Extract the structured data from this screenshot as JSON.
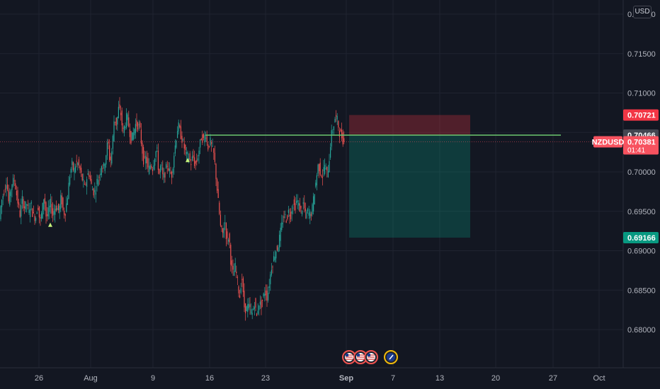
{
  "currency": "USD",
  "chart_data": {
    "type": "candlestick",
    "symbol": "NZDUSD",
    "ylim": [
      0.6775,
      0.7235
    ],
    "y_ticks": [
      "0.72000",
      "0.71500",
      "0.71000",
      "0.70500",
      "0.70000",
      "0.69500",
      "0.69000",
      "0.68500",
      "0.68000"
    ],
    "y_tick_values": [
      0.72,
      0.715,
      0.71,
      0.705,
      0.7,
      0.695,
      0.69,
      0.685,
      0.68
    ],
    "x_ticks": [
      {
        "label": "26",
        "bold": false
      },
      {
        "label": "Aug",
        "bold": false
      },
      {
        "label": "9",
        "bold": false
      },
      {
        "label": "16",
        "bold": false
      },
      {
        "label": "23",
        "bold": false
      },
      {
        "label": "Sep",
        "bold": true
      },
      {
        "label": "7",
        "bold": false
      },
      {
        "label": "13",
        "bold": false
      },
      {
        "label": "20",
        "bold": false
      },
      {
        "label": "27",
        "bold": false
      },
      {
        "label": "Oct",
        "bold": false
      }
    ],
    "price_path": [
      [
        0,
        0.693
      ],
      [
        3,
        0.696
      ],
      [
        7,
        0.6975
      ],
      [
        11,
        0.699
      ],
      [
        14,
        0.696
      ],
      [
        18,
        0.6985
      ],
      [
        22,
        0.699
      ],
      [
        26,
        0.6965
      ],
      [
        30,
        0.6945
      ],
      [
        33,
        0.6965
      ],
      [
        36,
        0.6955
      ],
      [
        40,
        0.696
      ],
      [
        42,
        0.6945
      ],
      [
        45,
        0.6962
      ],
      [
        48,
        0.6945
      ],
      [
        52,
        0.6942
      ],
      [
        55,
        0.696
      ],
      [
        58,
        0.6935
      ],
      [
        61,
        0.695
      ],
      [
        64,
        0.6972
      ],
      [
        67,
        0.694
      ],
      [
        70,
        0.695
      ],
      [
        73,
        0.696
      ],
      [
        76,
        0.6945
      ],
      [
        79,
        0.6955
      ],
      [
        82,
        0.6955
      ],
      [
        85,
        0.695
      ],
      [
        88,
        0.697
      ],
      [
        91,
        0.6948
      ],
      [
        94,
        0.695
      ],
      [
        97,
        0.697
      ],
      [
        100,
        0.6995
      ],
      [
        103,
        0.701
      ],
      [
        106,
        0.7
      ],
      [
        109,
        0.7012
      ],
      [
        112,
        0.701
      ],
      [
        115,
        0.7
      ],
      [
        118,
        0.699
      ],
      [
        121,
        0.698
      ],
      [
        124,
        0.6992
      ],
      [
        127,
        0.7
      ],
      [
        130,
        0.6985
      ],
      [
        133,
        0.6975
      ],
      [
        136,
        0.6975
      ],
      [
        139,
        0.699
      ],
      [
        142,
        0.6995
      ],
      [
        145,
        0.701
      ],
      [
        148,
        0.7005
      ],
      [
        151,
        0.702
      ],
      [
        154,
        0.704
      ],
      [
        157,
        0.701
      ],
      [
        160,
        0.703
      ],
      [
        163,
        0.707
      ],
      [
        166,
        0.706
      ],
      [
        169,
        0.708
      ],
      [
        172,
        0.7075
      ],
      [
        175,
        0.705
      ],
      [
        178,
        0.706
      ],
      [
        181,
        0.7072
      ],
      [
        184,
        0.7055
      ],
      [
        187,
        0.704
      ],
      [
        190,
        0.705
      ],
      [
        193,
        0.706
      ],
      [
        196,
        0.706
      ],
      [
        199,
        0.7055
      ],
      [
        202,
        0.703
      ],
      [
        205,
        0.701
      ],
      [
        208,
        0.702
      ],
      [
        211,
        0.7
      ],
      [
        214,
        0.701
      ],
      [
        217,
        0.7005
      ],
      [
        220,
        0.702
      ],
      [
        223,
        0.703
      ],
      [
        226,
        0.6995
      ],
      [
        229,
        0.701
      ],
      [
        232,
        0.699
      ],
      [
        235,
        0.7
      ],
      [
        238,
        0.701
      ],
      [
        241,
        0.7
      ],
      [
        244,
        0.6995
      ],
      [
        247,
        0.702
      ],
      [
        250,
        0.704
      ],
      [
        253,
        0.706
      ],
      [
        256,
        0.705
      ],
      [
        259,
        0.704
      ],
      [
        262,
        0.703
      ],
      [
        265,
        0.702
      ],
      [
        268,
        0.702
      ],
      [
        271,
        0.701
      ],
      [
        274,
        0.702
      ],
      [
        277,
        0.7008
      ],
      [
        280,
        0.7015
      ],
      [
        283,
        0.703
      ],
      [
        286,
        0.7045
      ],
      [
        289,
        0.704
      ],
      [
        292,
        0.705
      ],
      [
        295,
        0.703
      ],
      [
        298,
        0.704
      ],
      [
        301,
        0.703
      ],
      [
        304,
        0.702
      ],
      [
        307,
        0.699
      ],
      [
        310,
        0.696
      ],
      [
        313,
        0.693
      ],
      [
        316,
        0.692
      ],
      [
        319,
        0.694
      ],
      [
        322,
        0.691
      ],
      [
        325,
        0.692
      ],
      [
        328,
        0.688
      ],
      [
        331,
        0.687
      ],
      [
        334,
        0.688
      ],
      [
        337,
        0.686
      ],
      [
        340,
        0.684
      ],
      [
        343,
        0.687
      ],
      [
        346,
        0.683
      ],
      [
        349,
        0.6825
      ],
      [
        352,
        0.683
      ],
      [
        355,
        0.6825
      ],
      [
        358,
        0.682
      ],
      [
        361,
        0.6835
      ],
      [
        364,
        0.6815
      ],
      [
        367,
        0.6835
      ],
      [
        370,
        0.683
      ],
      [
        373,
        0.684
      ],
      [
        376,
        0.685
      ],
      [
        379,
        0.684
      ],
      [
        382,
        0.686
      ],
      [
        385,
        0.688
      ],
      [
        388,
        0.689
      ],
      [
        391,
        0.69
      ],
      [
        394,
        0.6905
      ],
      [
        397,
        0.692
      ],
      [
        400,
        0.6935
      ],
      [
        403,
        0.6945
      ],
      [
        406,
        0.694
      ],
      [
        409,
        0.695
      ],
      [
        412,
        0.6945
      ],
      [
        415,
        0.696
      ],
      [
        418,
        0.6955
      ],
      [
        421,
        0.6965
      ],
      [
        424,
        0.6955
      ],
      [
        427,
        0.695
      ],
      [
        430,
        0.696
      ],
      [
        433,
        0.6945
      ],
      [
        436,
        0.695
      ],
      [
        439,
        0.6945
      ],
      [
        442,
        0.695
      ],
      [
        445,
        0.697
      ],
      [
        448,
        0.699
      ],
      [
        451,
        0.701
      ],
      [
        454,
        0.7
      ],
      [
        457,
        0.6995
      ],
      [
        460,
        0.701
      ],
      [
        463,
        0.6995
      ],
      [
        466,
        0.701
      ],
      [
        469,
        0.7045
      ],
      [
        472,
        0.7055
      ],
      [
        475,
        0.707
      ],
      [
        478,
        0.7065
      ],
      [
        481,
        0.705
      ],
      [
        484,
        0.7045
      ],
      [
        487,
        0.7038
      ]
    ],
    "horizontal_line": {
      "price": 0.70466,
      "color": "#66bb6a",
      "start_x": 290,
      "end_x": 792
    },
    "position": {
      "entry": 0.70466,
      "stop": 0.70721,
      "target": 0.69166,
      "start_x": 493,
      "end_x": 664
    },
    "signal_markers": [
      {
        "x": 71,
        "price": 0.6933
      },
      {
        "x": 265,
        "price": 0.7015
      }
    ],
    "event_markers": [
      {
        "x": 493,
        "kind": "us-flag"
      },
      {
        "x": 509,
        "kind": "us-flag"
      },
      {
        "x": 524,
        "kind": "us-flag"
      },
      {
        "x": 552,
        "kind": "nz-flag"
      }
    ],
    "price_tags": [
      {
        "id": "stop",
        "label": "",
        "value": "0.70721",
        "price": 0.70721,
        "color": "#f23645"
      },
      {
        "id": "line",
        "label": "",
        "value": "0.70466",
        "price": 0.70466,
        "color": "#434651"
      },
      {
        "id": "last",
        "label": "NZDUSD",
        "value": "0.70381",
        "sub": "01:41",
        "price": 0.70381,
        "color": "#f7525f"
      },
      {
        "id": "target",
        "label": "",
        "value": "0.69166",
        "price": 0.69166,
        "color": "#089981"
      }
    ],
    "colors": {
      "up": "#26a69a",
      "down": "#ef5350",
      "background": "#131722",
      "grid": "#1f2330"
    }
  }
}
